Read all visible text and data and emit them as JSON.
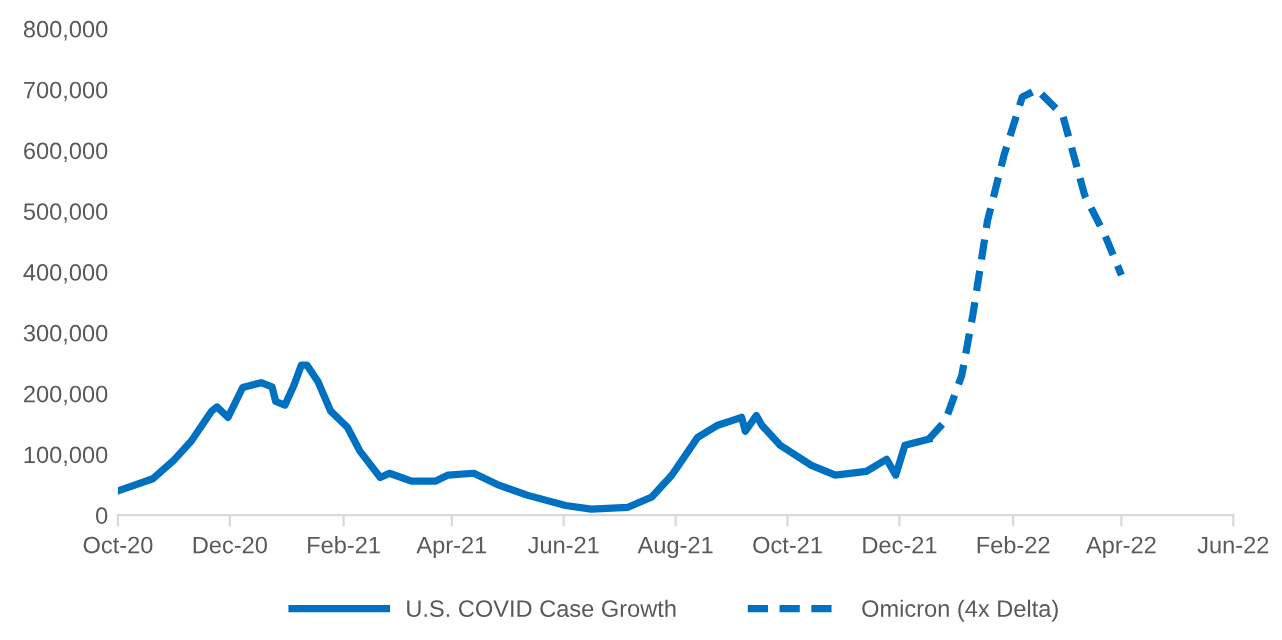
{
  "chart_data": {
    "type": "line",
    "series": [
      {
        "name": "U.S. COVID Case Growth",
        "color": "#0070c0",
        "line_style": "solid",
        "x": [
          "2020-10-01",
          "2020-10-20",
          "2020-10-31",
          "2020-11-10",
          "2020-11-21",
          "2020-11-24",
          "2020-11-30",
          "2020-12-08",
          "2020-12-18",
          "2020-12-24",
          "2020-12-26",
          "2020-12-31",
          "2021-01-05",
          "2021-01-09",
          "2021-01-12",
          "2021-01-18",
          "2021-01-25",
          "2021-02-03",
          "2021-02-10",
          "2021-02-21",
          "2021-02-26",
          "2021-03-10",
          "2021-03-23",
          "2021-03-30",
          "2021-04-13",
          "2021-04-27",
          "2021-05-12",
          "2021-06-02",
          "2021-06-16",
          "2021-07-06",
          "2021-07-19",
          "2021-07-30",
          "2021-08-13",
          "2021-08-24",
          "2021-09-06",
          "2021-09-08",
          "2021-09-14",
          "2021-09-17",
          "2021-09-27",
          "2021-10-14",
          "2021-10-27",
          "2021-11-13",
          "2021-11-24",
          "2021-11-29",
          "2021-12-04",
          "2021-12-17"
        ],
        "values": [
          40000,
          60000,
          89000,
          122000,
          171000,
          178000,
          161000,
          210000,
          218000,
          211000,
          187000,
          181000,
          214000,
          247000,
          247000,
          220000,
          171000,
          145000,
          105000,
          62000,
          69000,
          56000,
          56000,
          66000,
          69000,
          49000,
          33000,
          16000,
          10000,
          13000,
          30000,
          66000,
          128000,
          148000,
          161000,
          138000,
          164000,
          148000,
          115000,
          82000,
          66000,
          72000,
          92000,
          66000,
          115000,
          125000
        ]
      },
      {
        "name": "Omicron (4x Delta)",
        "color": "#0070c0",
        "line_style": "dashed",
        "x": [
          "2021-12-17",
          "2021-12-26",
          "2022-01-04",
          "2022-01-10",
          "2022-01-18",
          "2022-01-27",
          "2022-02-06",
          "2022-02-14",
          "2022-02-28",
          "2022-03-12",
          "2022-03-23",
          "2022-04-01"
        ],
        "values": [
          125000,
          155000,
          230000,
          329000,
          484000,
          592000,
          688000,
          700000,
          658000,
          526000,
          461000,
          395000
        ]
      }
    ],
    "xlim": [
      "2020-10-01",
      "2022-06-01"
    ],
    "xticks": [
      {
        "value": "2020-10-01",
        "label": "Oct-20"
      },
      {
        "value": "2020-12-01",
        "label": "Dec-20"
      },
      {
        "value": "2021-02-01",
        "label": "Feb-21"
      },
      {
        "value": "2021-04-01",
        "label": "Apr-21"
      },
      {
        "value": "2021-06-01",
        "label": "Jun-21"
      },
      {
        "value": "2021-08-01",
        "label": "Aug-21"
      },
      {
        "value": "2021-10-01",
        "label": "Oct-21"
      },
      {
        "value": "2021-12-01",
        "label": "Dec-21"
      },
      {
        "value": "2022-02-01",
        "label": "Feb-22"
      },
      {
        "value": "2022-04-01",
        "label": "Apr-22"
      },
      {
        "value": "2022-06-01",
        "label": "Jun-22"
      }
    ],
    "ylim": [
      0,
      800000
    ],
    "yticks": [
      {
        "value": 0,
        "label": "0"
      },
      {
        "value": 100000,
        "label": "100,000"
      },
      {
        "value": 200000,
        "label": "200,000"
      },
      {
        "value": 300000,
        "label": "300,000"
      },
      {
        "value": 400000,
        "label": "400,000"
      },
      {
        "value": 500000,
        "label": "500,000"
      },
      {
        "value": 600000,
        "label": "600,000"
      },
      {
        "value": 700000,
        "label": "700,000"
      },
      {
        "value": 800000,
        "label": "800,000"
      }
    ],
    "grid": false,
    "legend": "bottom",
    "marker": "none"
  }
}
